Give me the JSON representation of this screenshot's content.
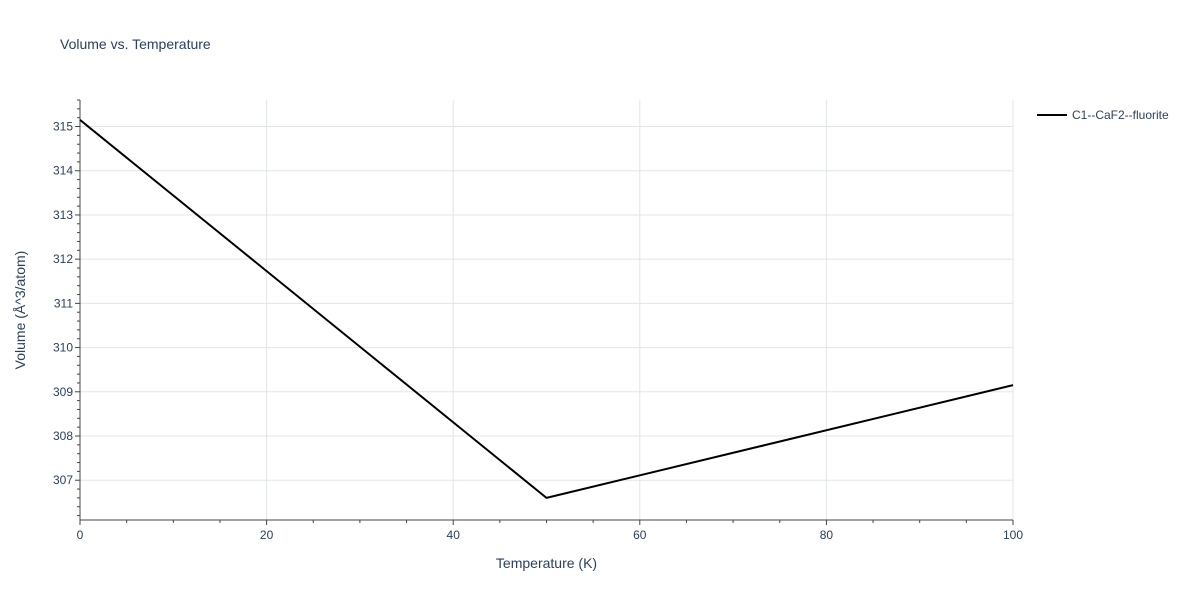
{
  "chart_data": {
    "type": "line",
    "title": "Volume vs. Temperature",
    "xlabel": "Temperature (K)",
    "ylabel": "Volume (Å^3/atom)",
    "xlim": [
      0,
      100
    ],
    "ylim": [
      306.1,
      315.6
    ],
    "xticks": [
      0,
      20,
      40,
      60,
      80,
      100
    ],
    "yticks": [
      307,
      308,
      309,
      310,
      311,
      312,
      313,
      314,
      315
    ],
    "grid": true,
    "legend_position": "top-right",
    "series": [
      {
        "name": "C1--CaF2--fluorite",
        "color": "#000000",
        "x": [
          0,
          50,
          100
        ],
        "y": [
          315.15,
          306.6,
          309.15
        ]
      }
    ]
  }
}
